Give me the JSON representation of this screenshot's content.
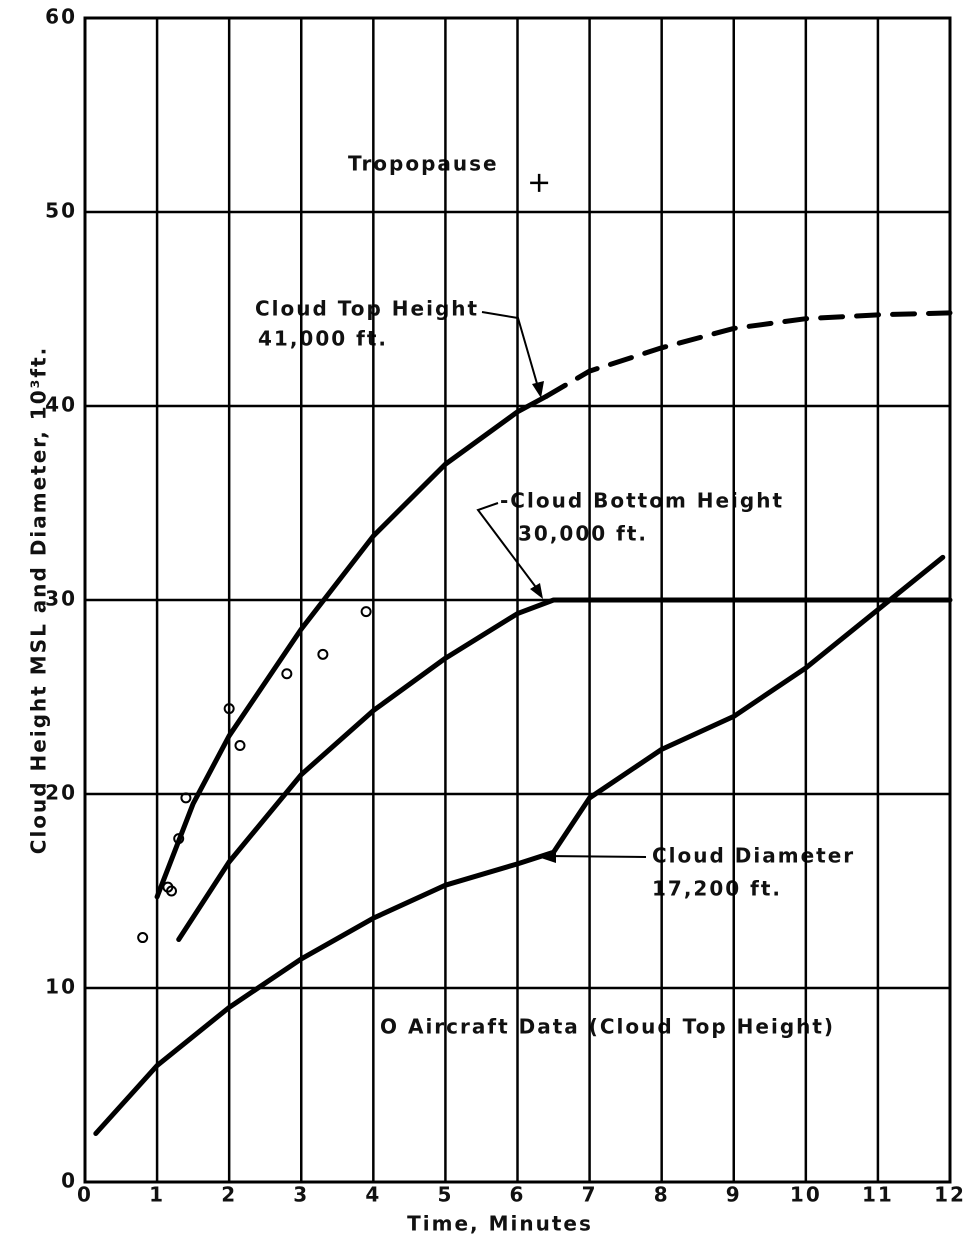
{
  "chart_data": {
    "type": "line",
    "xlabel": "Time, Minutes",
    "ylabel": "Cloud Height MSL and Diameter, 10³ft.",
    "xlim": [
      0,
      12
    ],
    "xticks": [
      0,
      1,
      2,
      3,
      4,
      5,
      6,
      7,
      8,
      9,
      10,
      11,
      12
    ],
    "ylim": [
      0,
      60
    ],
    "yticks": [
      0,
      10,
      20,
      30,
      40,
      50,
      60
    ],
    "grid": true,
    "series": [
      {
        "color": "#000000",
        "style": "solid",
        "x": [
          1,
          1.5,
          2,
          3,
          4,
          5,
          6,
          6.4
        ],
        "values": [
          14.7,
          19.5,
          23,
          28.5,
          33.3,
          37,
          39.7,
          40.5
        ]
      },
      {
        "color": "#000000",
        "style": "dashed",
        "x": [
          6.4,
          7,
          8,
          9,
          10,
          11,
          12
        ],
        "values": [
          40.5,
          41.8,
          43,
          44,
          44.5,
          44.7,
          44.8
        ]
      },
      {
        "color": "#000000",
        "style": "solid",
        "x": [
          1.3,
          2,
          3,
          4,
          5,
          6,
          6.5,
          12
        ],
        "values": [
          12.5,
          16.5,
          21,
          24.3,
          27,
          29.3,
          30,
          30
        ]
      },
      {
        "color": "#000000",
        "style": "solid",
        "x": [
          0.15,
          1,
          2,
          3,
          4,
          5,
          6,
          6.5,
          7,
          8,
          9,
          10,
          11,
          11.9
        ],
        "values": [
          2.5,
          6,
          9,
          11.5,
          13.6,
          15.3,
          16.4,
          17,
          19.8,
          22.3,
          24,
          26.5,
          29.5,
          32.2
        ]
      }
    ],
    "points": {
      "x": [
        0.8,
        1.15,
        1.2,
        1.3,
        1.4,
        2.0,
        2.15,
        2.8,
        3.3,
        3.9
      ],
      "values": [
        12.6,
        15.2,
        15,
        17.7,
        19.8,
        24.4,
        22.5,
        26.2,
        27.2,
        29.4
      ]
    },
    "tropopause": {
      "x": 6.3,
      "value": 51.5
    },
    "annotations": [
      "Tropopause",
      "Cloud Top Height",
      "41,000 ft.",
      "-Cloud Bottom Height",
      "30,000 ft.",
      "Cloud Diameter",
      "17,200 ft.",
      "O Aircraft Data (Cloud Top Height)"
    ]
  }
}
